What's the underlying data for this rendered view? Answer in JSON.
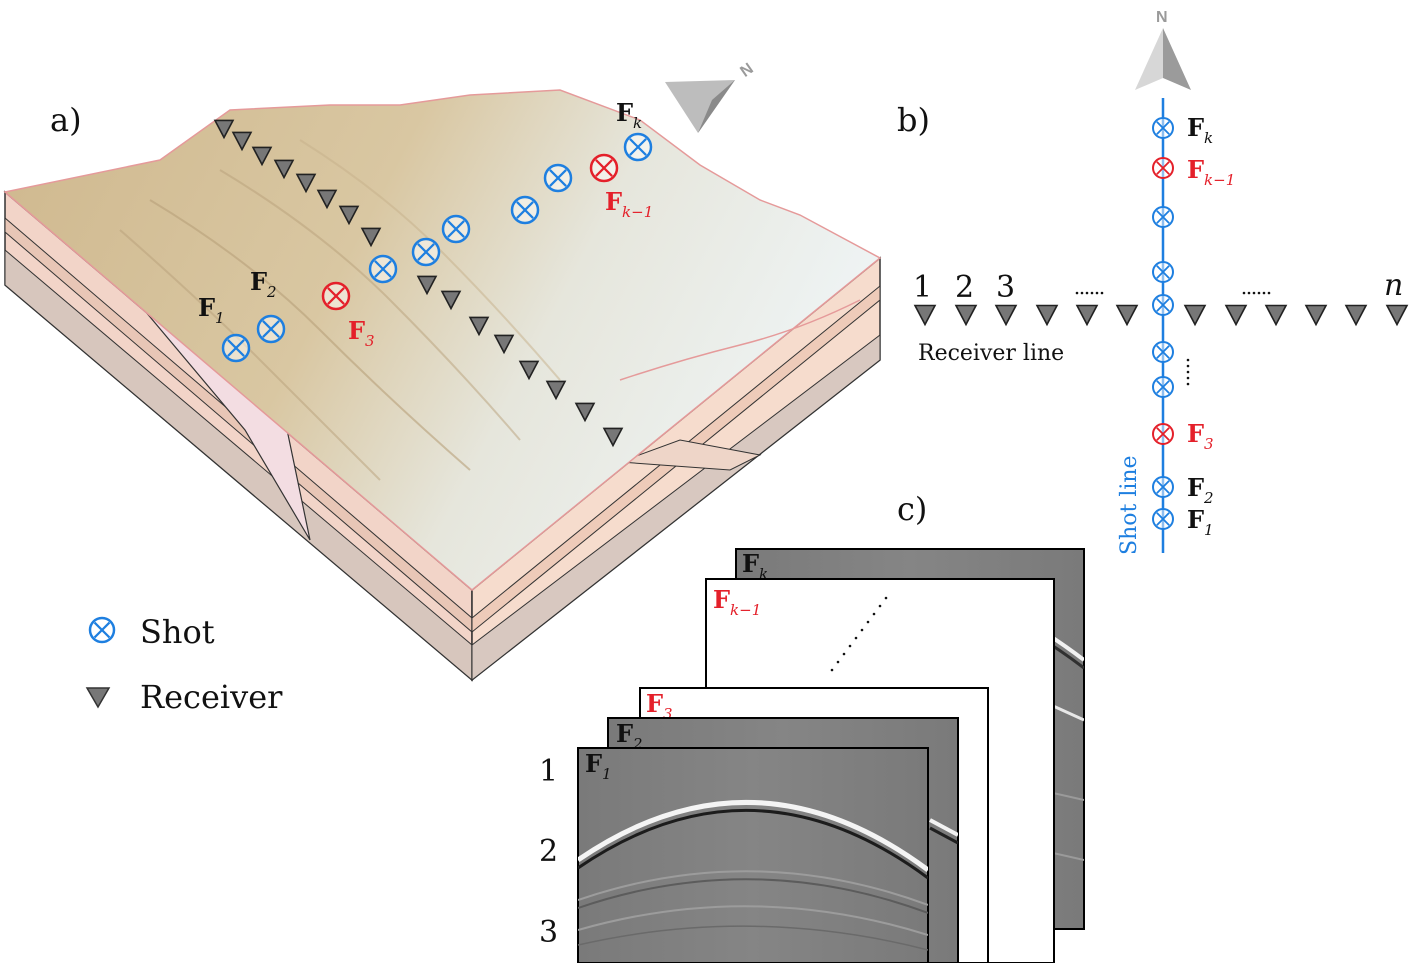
{
  "panels": {
    "a": "a)",
    "b": "b)",
    "c": "c)"
  },
  "north": "N",
  "map_shots": [
    {
      "label": "F",
      "sub": "1"
    },
    {
      "label": "F",
      "sub": "2"
    },
    {
      "label": "F",
      "sub": "3"
    },
    {
      "label": "F",
      "sub": "k−1"
    },
    {
      "label": "F",
      "sub": "k"
    }
  ],
  "legend": {
    "shot": "Shot",
    "receiver": "Receiver"
  },
  "diagram_b": {
    "receiver_numbers": [
      "1",
      "2",
      "3"
    ],
    "receiver_last": "n",
    "receiver_line": "Receiver line",
    "shot_line": "Shot line",
    "shots": [
      {
        "label": "F",
        "sub": "k"
      },
      {
        "label": "F",
        "sub": "k−1"
      },
      {
        "label": "F",
        "sub": "3"
      },
      {
        "label": "F",
        "sub": "2"
      },
      {
        "label": "F",
        "sub": "1"
      }
    ]
  },
  "gathers": {
    "labels": [
      {
        "label": "F",
        "sub": "k"
      },
      {
        "label": "F",
        "sub": "k−1"
      },
      {
        "label": "F",
        "sub": "3"
      },
      {
        "label": "F",
        "sub": "2"
      },
      {
        "label": "F",
        "sub": "1"
      }
    ],
    "row_numbers": [
      "1",
      "2",
      "3"
    ]
  },
  "colors": {
    "shot_blue": "#1e7fe0",
    "shot_red": "#e4202a",
    "receiver": "#777777",
    "terrain": "#d8c49e"
  }
}
